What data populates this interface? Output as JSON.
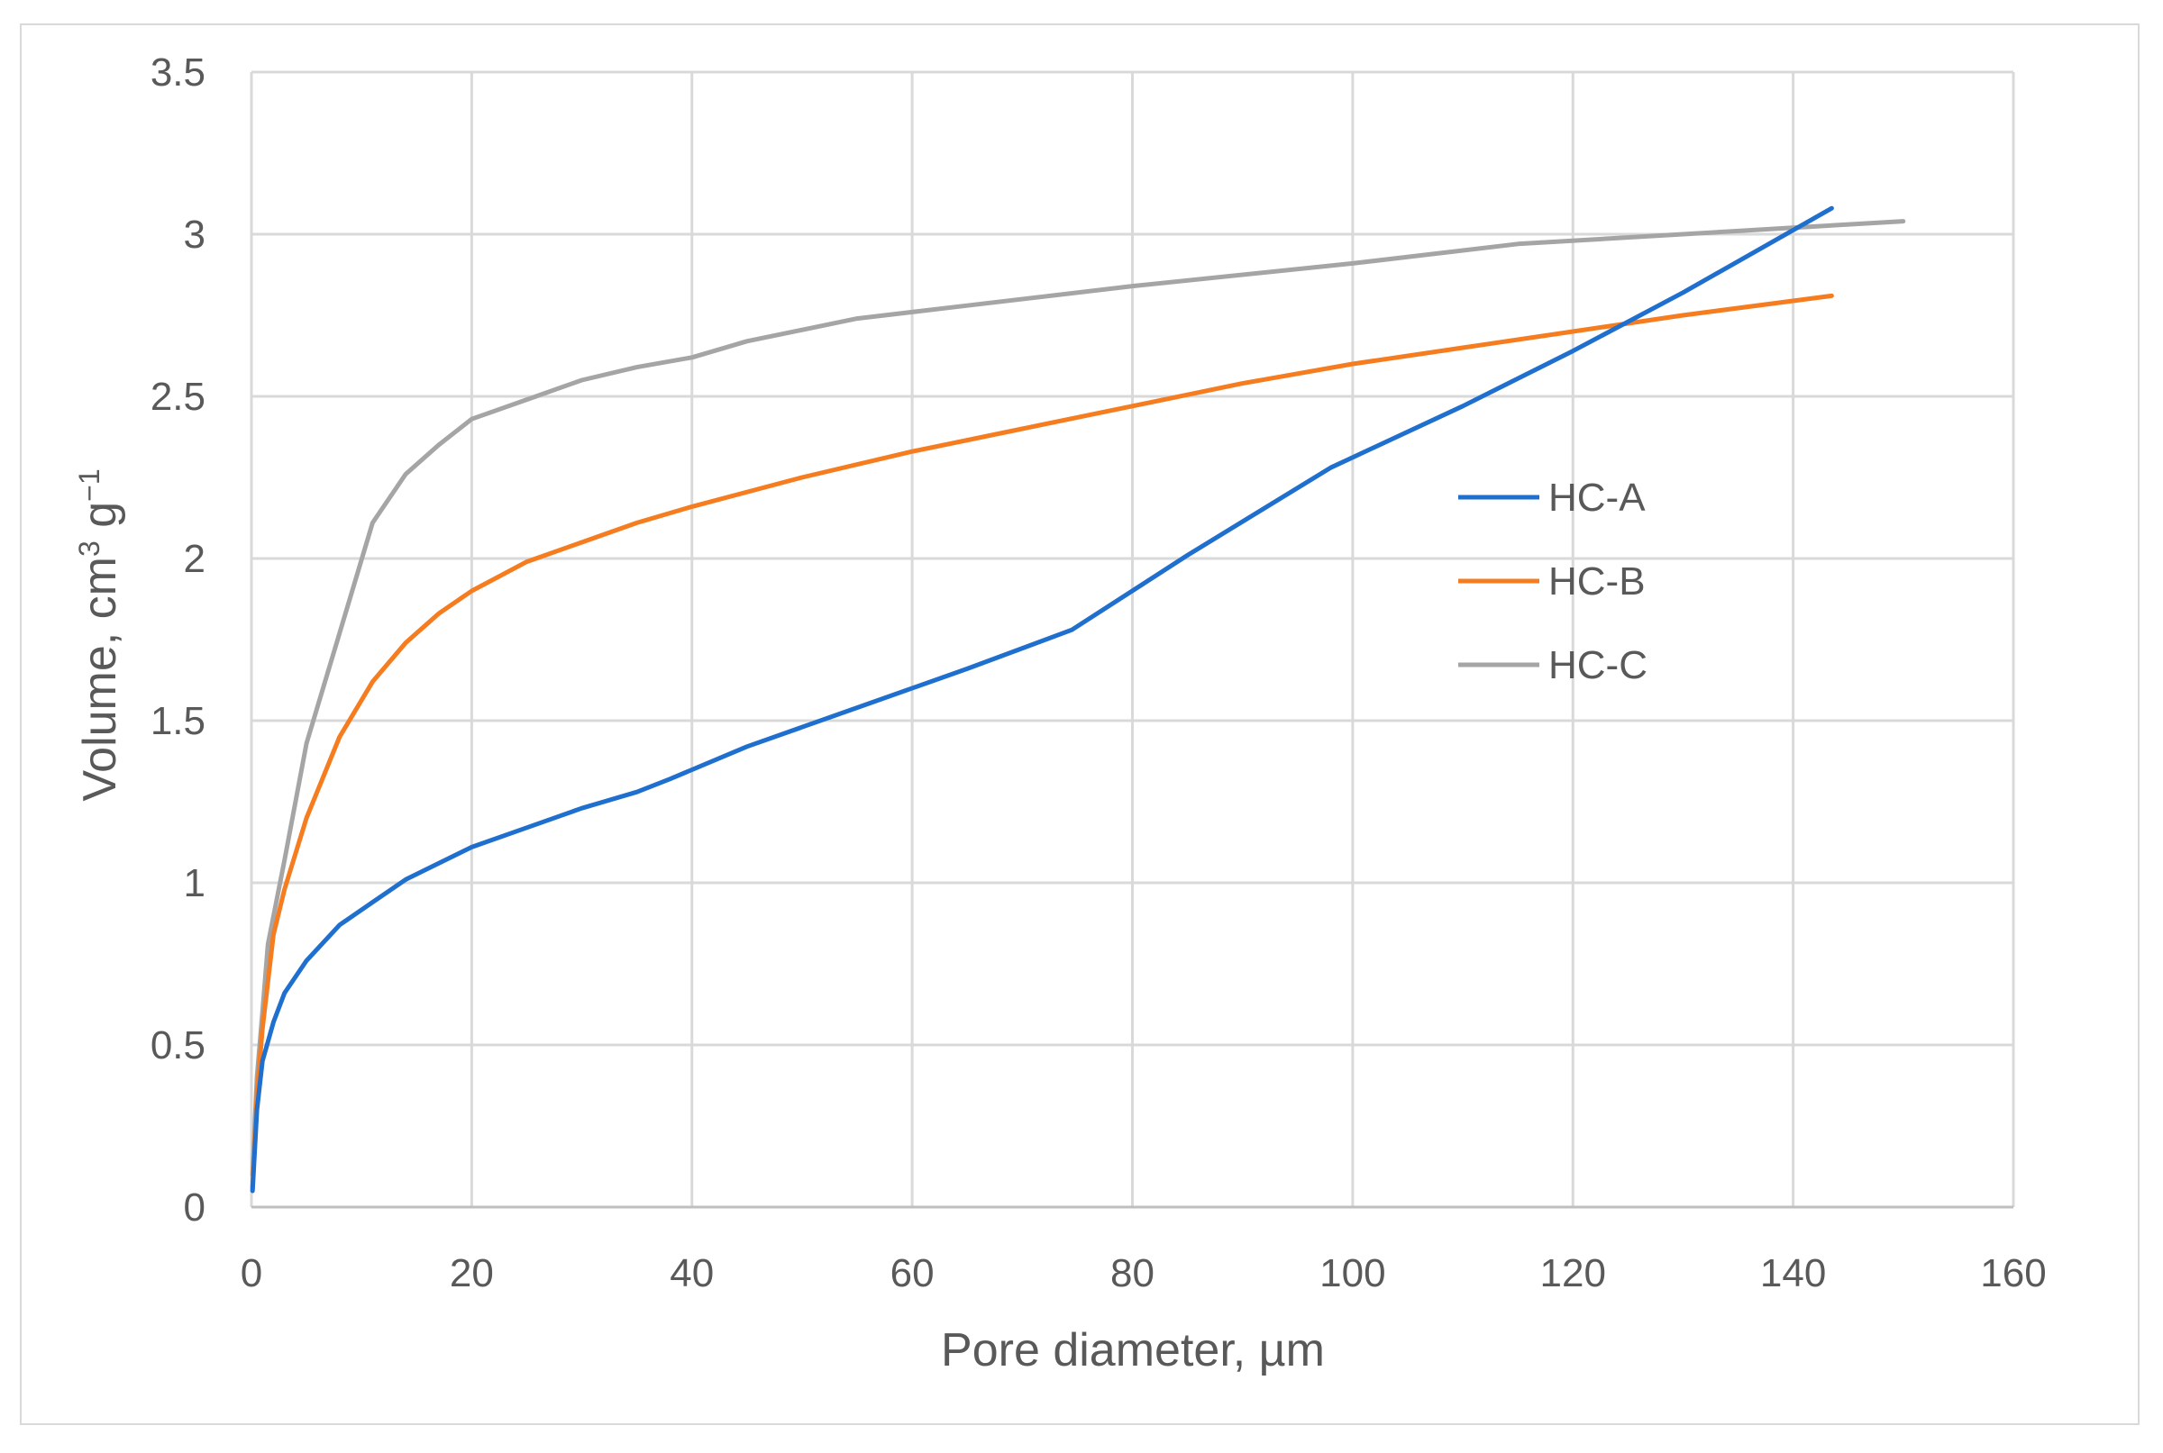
{
  "chart_data": {
    "type": "line",
    "xlabel": "Pore diameter, µm",
    "ylabel": {
      "text": "Volume, cm",
      "sup1": "3",
      "mid": " g",
      "sup2": "−1"
    },
    "xlim": [
      0,
      160
    ],
    "ylim": [
      0,
      3.5
    ],
    "x_ticks": [
      "0",
      "20",
      "40",
      "60",
      "80",
      "100",
      "120",
      "140",
      "160"
    ],
    "y_ticks": [
      "0",
      "0.5",
      "1",
      "1.5",
      "2",
      "2.5",
      "3",
      "3.5"
    ],
    "grid": true,
    "legend_position": "right-center",
    "series": [
      {
        "name": "HC-A",
        "color": "#1f6fcf",
        "points": [
          [
            0.1,
            0.05
          ],
          [
            0.5,
            0.3
          ],
          [
            1,
            0.45
          ],
          [
            2,
            0.57
          ],
          [
            3,
            0.66
          ],
          [
            5,
            0.76
          ],
          [
            8,
            0.87
          ],
          [
            11,
            0.94
          ],
          [
            14,
            1.01
          ],
          [
            17,
            1.06
          ],
          [
            20,
            1.11
          ],
          [
            25,
            1.17
          ],
          [
            30,
            1.23
          ],
          [
            35,
            1.28
          ],
          [
            38,
            1.32
          ],
          [
            45,
            1.42
          ],
          [
            55,
            1.54
          ],
          [
            65,
            1.66
          ],
          [
            74.5,
            1.78
          ],
          [
            85,
            2.01
          ],
          [
            98,
            2.28
          ],
          [
            110,
            2.47
          ],
          [
            120,
            2.64
          ],
          [
            130,
            2.82
          ],
          [
            143.5,
            3.08
          ]
        ]
      },
      {
        "name": "HC-B",
        "color": "#f57c1f",
        "points": [
          [
            0.1,
            0.06
          ],
          [
            0.5,
            0.35
          ],
          [
            1,
            0.55
          ],
          [
            2,
            0.84
          ],
          [
            3,
            0.98
          ],
          [
            5,
            1.2
          ],
          [
            8,
            1.45
          ],
          [
            11,
            1.62
          ],
          [
            14,
            1.74
          ],
          [
            17,
            1.83
          ],
          [
            20,
            1.9
          ],
          [
            25,
            1.99
          ],
          [
            30,
            2.05
          ],
          [
            35,
            2.11
          ],
          [
            40,
            2.16
          ],
          [
            50,
            2.25
          ],
          [
            60,
            2.33
          ],
          [
            70,
            2.4
          ],
          [
            80,
            2.47
          ],
          [
            90,
            2.54
          ],
          [
            100,
            2.6
          ],
          [
            110,
            2.65
          ],
          [
            120,
            2.7
          ],
          [
            130,
            2.75
          ],
          [
            143.5,
            2.81
          ]
        ]
      },
      {
        "name": "HC-C",
        "color": "#a5a5a5",
        "points": [
          [
            0.1,
            0.1
          ],
          [
            0.5,
            0.4
          ],
          [
            1,
            0.6
          ],
          [
            1.5,
            0.81
          ],
          [
            3,
            1.07
          ],
          [
            5,
            1.43
          ],
          [
            8,
            1.77
          ],
          [
            11,
            2.11
          ],
          [
            14,
            2.26
          ],
          [
            17,
            2.35
          ],
          [
            20,
            2.43
          ],
          [
            25,
            2.49
          ],
          [
            30,
            2.55
          ],
          [
            35,
            2.59
          ],
          [
            40,
            2.62
          ],
          [
            45,
            2.67
          ],
          [
            55,
            2.74
          ],
          [
            65,
            2.78
          ],
          [
            80,
            2.84
          ],
          [
            100,
            2.91
          ],
          [
            115,
            2.97
          ],
          [
            130,
            3.0
          ],
          [
            140,
            3.02
          ],
          [
            150,
            3.04
          ]
        ]
      }
    ]
  }
}
